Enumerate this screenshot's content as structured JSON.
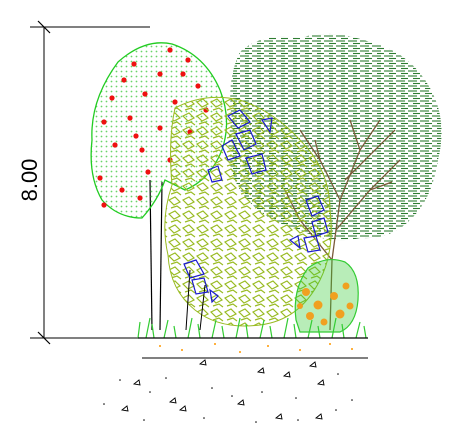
{
  "drawing": {
    "dimension_label": "8.00",
    "colors": {
      "line": "#000000",
      "crown_green": "#22cc22",
      "crown_dots": "#6ad46a",
      "fruit_red": "#ee1111",
      "hatch_green": "#2e7d32",
      "foliage_olive": "#99bb22",
      "foliage_blue": "#1a1acc",
      "branch_brown": "#7a5a3a",
      "shrub_green": "#33cc33",
      "shrub_orange": "#f0a020",
      "grass_green": "#33cc33",
      "ground_orange": "#ff9900"
    },
    "icons": [
      "deciduous-fruit-tree",
      "hatched-canopy-tree",
      "olive-foliage-tree",
      "flowering-shrub",
      "grass-strip",
      "ground-section"
    ]
  }
}
